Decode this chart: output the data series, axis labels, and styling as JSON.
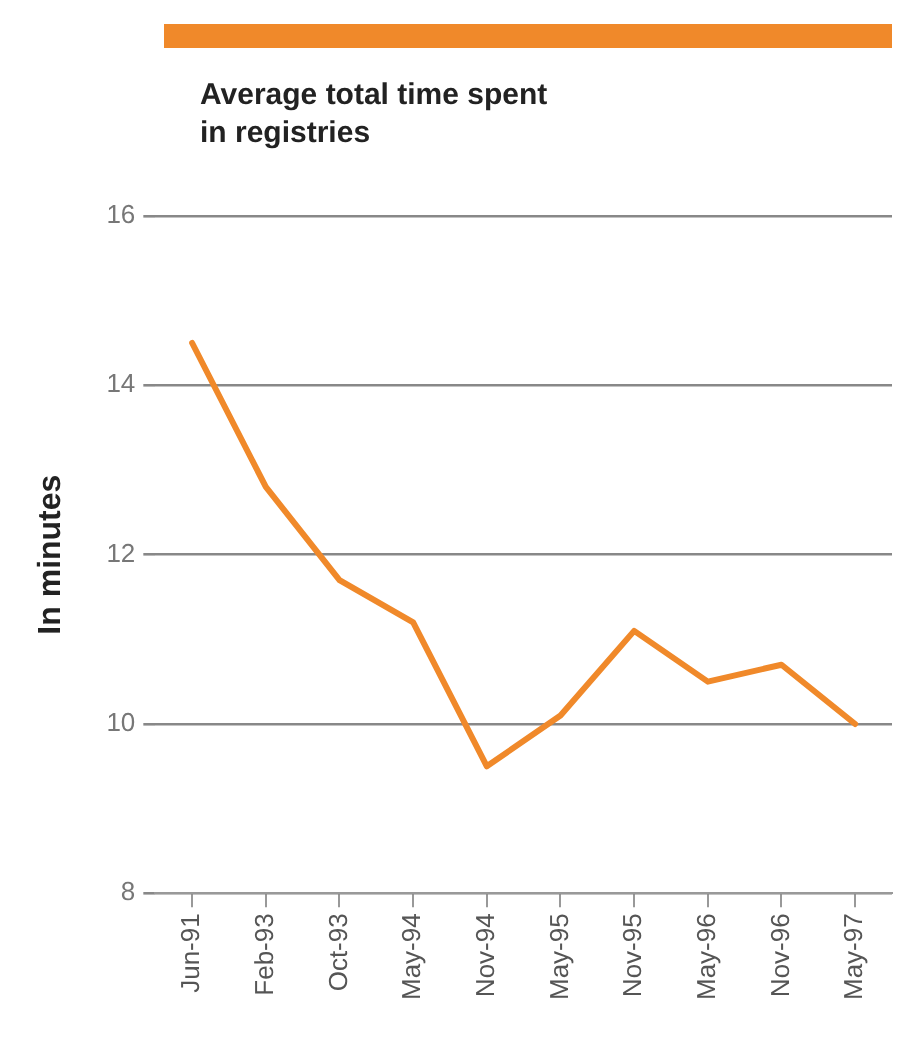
{
  "chart_data": {
    "type": "line",
    "title": "Average total time spent in registries",
    "ylabel": "In minutes",
    "categories": [
      "Jun-91",
      "Feb-93",
      "Oct-93",
      "May-94",
      "Nov-94",
      "May-95",
      "Nov-95",
      "May-96",
      "Nov-96",
      "May-97"
    ],
    "series": [
      {
        "color": "#f0892a",
        "values": [
          14.5,
          12.8,
          11.7,
          11.2,
          9.5,
          10.1,
          11.1,
          10.5,
          10.7,
          10.0
        ]
      }
    ],
    "ylim": [
      8,
      16
    ],
    "yticks": [
      8,
      10,
      12,
      14,
      16
    ],
    "grid": "y",
    "legend": false,
    "marker": "none",
    "line_style": "solid"
  }
}
